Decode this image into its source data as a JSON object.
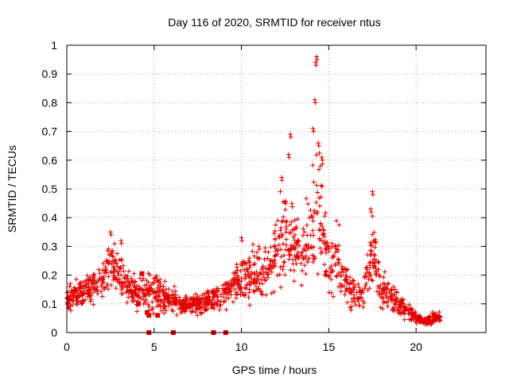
{
  "chart_data": {
    "type": "scatter",
    "title": "Day 116 of 2020, SRMTID for receiver ntus",
    "xlabel": "GPS time / hours",
    "ylabel": "SRMTID / TECUs",
    "xlim": [
      0,
      24
    ],
    "ylim": [
      0,
      1
    ],
    "x_ticks": [
      "0",
      "5",
      "10",
      "15",
      "20"
    ],
    "y_ticks": [
      "0",
      "0.1",
      "0.2",
      "0.3",
      "0.4",
      "0.5",
      "0.6",
      "0.7",
      "0.8",
      "0.9",
      "1"
    ],
    "grid": true,
    "marker": "plus",
    "color": "#e00000",
    "envelope": [
      [
        0.0,
        0.12,
        0.04
      ],
      [
        0.5,
        0.13,
        0.04
      ],
      [
        1.0,
        0.14,
        0.05
      ],
      [
        1.5,
        0.16,
        0.06
      ],
      [
        2.0,
        0.18,
        0.06
      ],
      [
        2.5,
        0.24,
        0.08
      ],
      [
        3.0,
        0.2,
        0.08
      ],
      [
        3.5,
        0.15,
        0.05
      ],
      [
        4.0,
        0.14,
        0.05
      ],
      [
        4.5,
        0.13,
        0.06
      ],
      [
        5.0,
        0.16,
        0.07
      ],
      [
        5.5,
        0.13,
        0.05
      ],
      [
        6.0,
        0.11,
        0.04
      ],
      [
        6.5,
        0.1,
        0.03
      ],
      [
        7.0,
        0.1,
        0.03
      ],
      [
        7.5,
        0.1,
        0.03
      ],
      [
        8.0,
        0.11,
        0.04
      ],
      [
        8.5,
        0.13,
        0.05
      ],
      [
        9.0,
        0.13,
        0.05
      ],
      [
        9.5,
        0.16,
        0.06
      ],
      [
        10.0,
        0.18,
        0.07
      ],
      [
        10.5,
        0.19,
        0.08
      ],
      [
        11.0,
        0.2,
        0.08
      ],
      [
        11.5,
        0.22,
        0.09
      ],
      [
        12.0,
        0.27,
        0.12
      ],
      [
        12.5,
        0.36,
        0.16
      ],
      [
        13.0,
        0.3,
        0.12
      ],
      [
        13.5,
        0.28,
        0.1
      ],
      [
        14.0,
        0.34,
        0.14
      ],
      [
        14.3,
        0.5,
        0.22
      ],
      [
        14.7,
        0.33,
        0.15
      ],
      [
        15.0,
        0.22,
        0.1
      ],
      [
        15.5,
        0.26,
        0.1
      ],
      [
        16.0,
        0.17,
        0.07
      ],
      [
        16.5,
        0.13,
        0.05
      ],
      [
        17.0,
        0.14,
        0.05
      ],
      [
        17.5,
        0.3,
        0.12
      ],
      [
        18.0,
        0.15,
        0.06
      ],
      [
        18.5,
        0.13,
        0.05
      ],
      [
        19.0,
        0.1,
        0.04
      ],
      [
        19.5,
        0.08,
        0.03
      ],
      [
        20.0,
        0.05,
        0.02
      ],
      [
        20.5,
        0.04,
        0.015
      ],
      [
        21.0,
        0.05,
        0.02
      ],
      [
        21.4,
        0.05,
        0.015
      ]
    ],
    "peaks": [
      [
        2.5,
        0.35
      ],
      [
        3.1,
        0.32
      ],
      [
        12.3,
        0.54
      ],
      [
        12.7,
        0.62
      ],
      [
        12.8,
        0.69
      ],
      [
        14.1,
        0.71
      ],
      [
        14.2,
        0.81
      ],
      [
        14.25,
        0.94
      ],
      [
        14.3,
        0.96
      ],
      [
        14.6,
        0.61
      ],
      [
        14.4,
        0.66
      ],
      [
        17.5,
        0.49
      ],
      [
        17.4,
        0.43
      ],
      [
        10.0,
        0.33
      ],
      [
        11.0,
        0.3
      ]
    ],
    "zero_markers_x": [
      4.7,
      6.1,
      8.4,
      9.1
    ],
    "dense_markers": [
      [
        4.3,
        0.205
      ],
      [
        4.1,
        0.1
      ],
      [
        4.6,
        0.07
      ],
      [
        4.7,
        0.06
      ],
      [
        5.2,
        0.06
      ]
    ]
  }
}
